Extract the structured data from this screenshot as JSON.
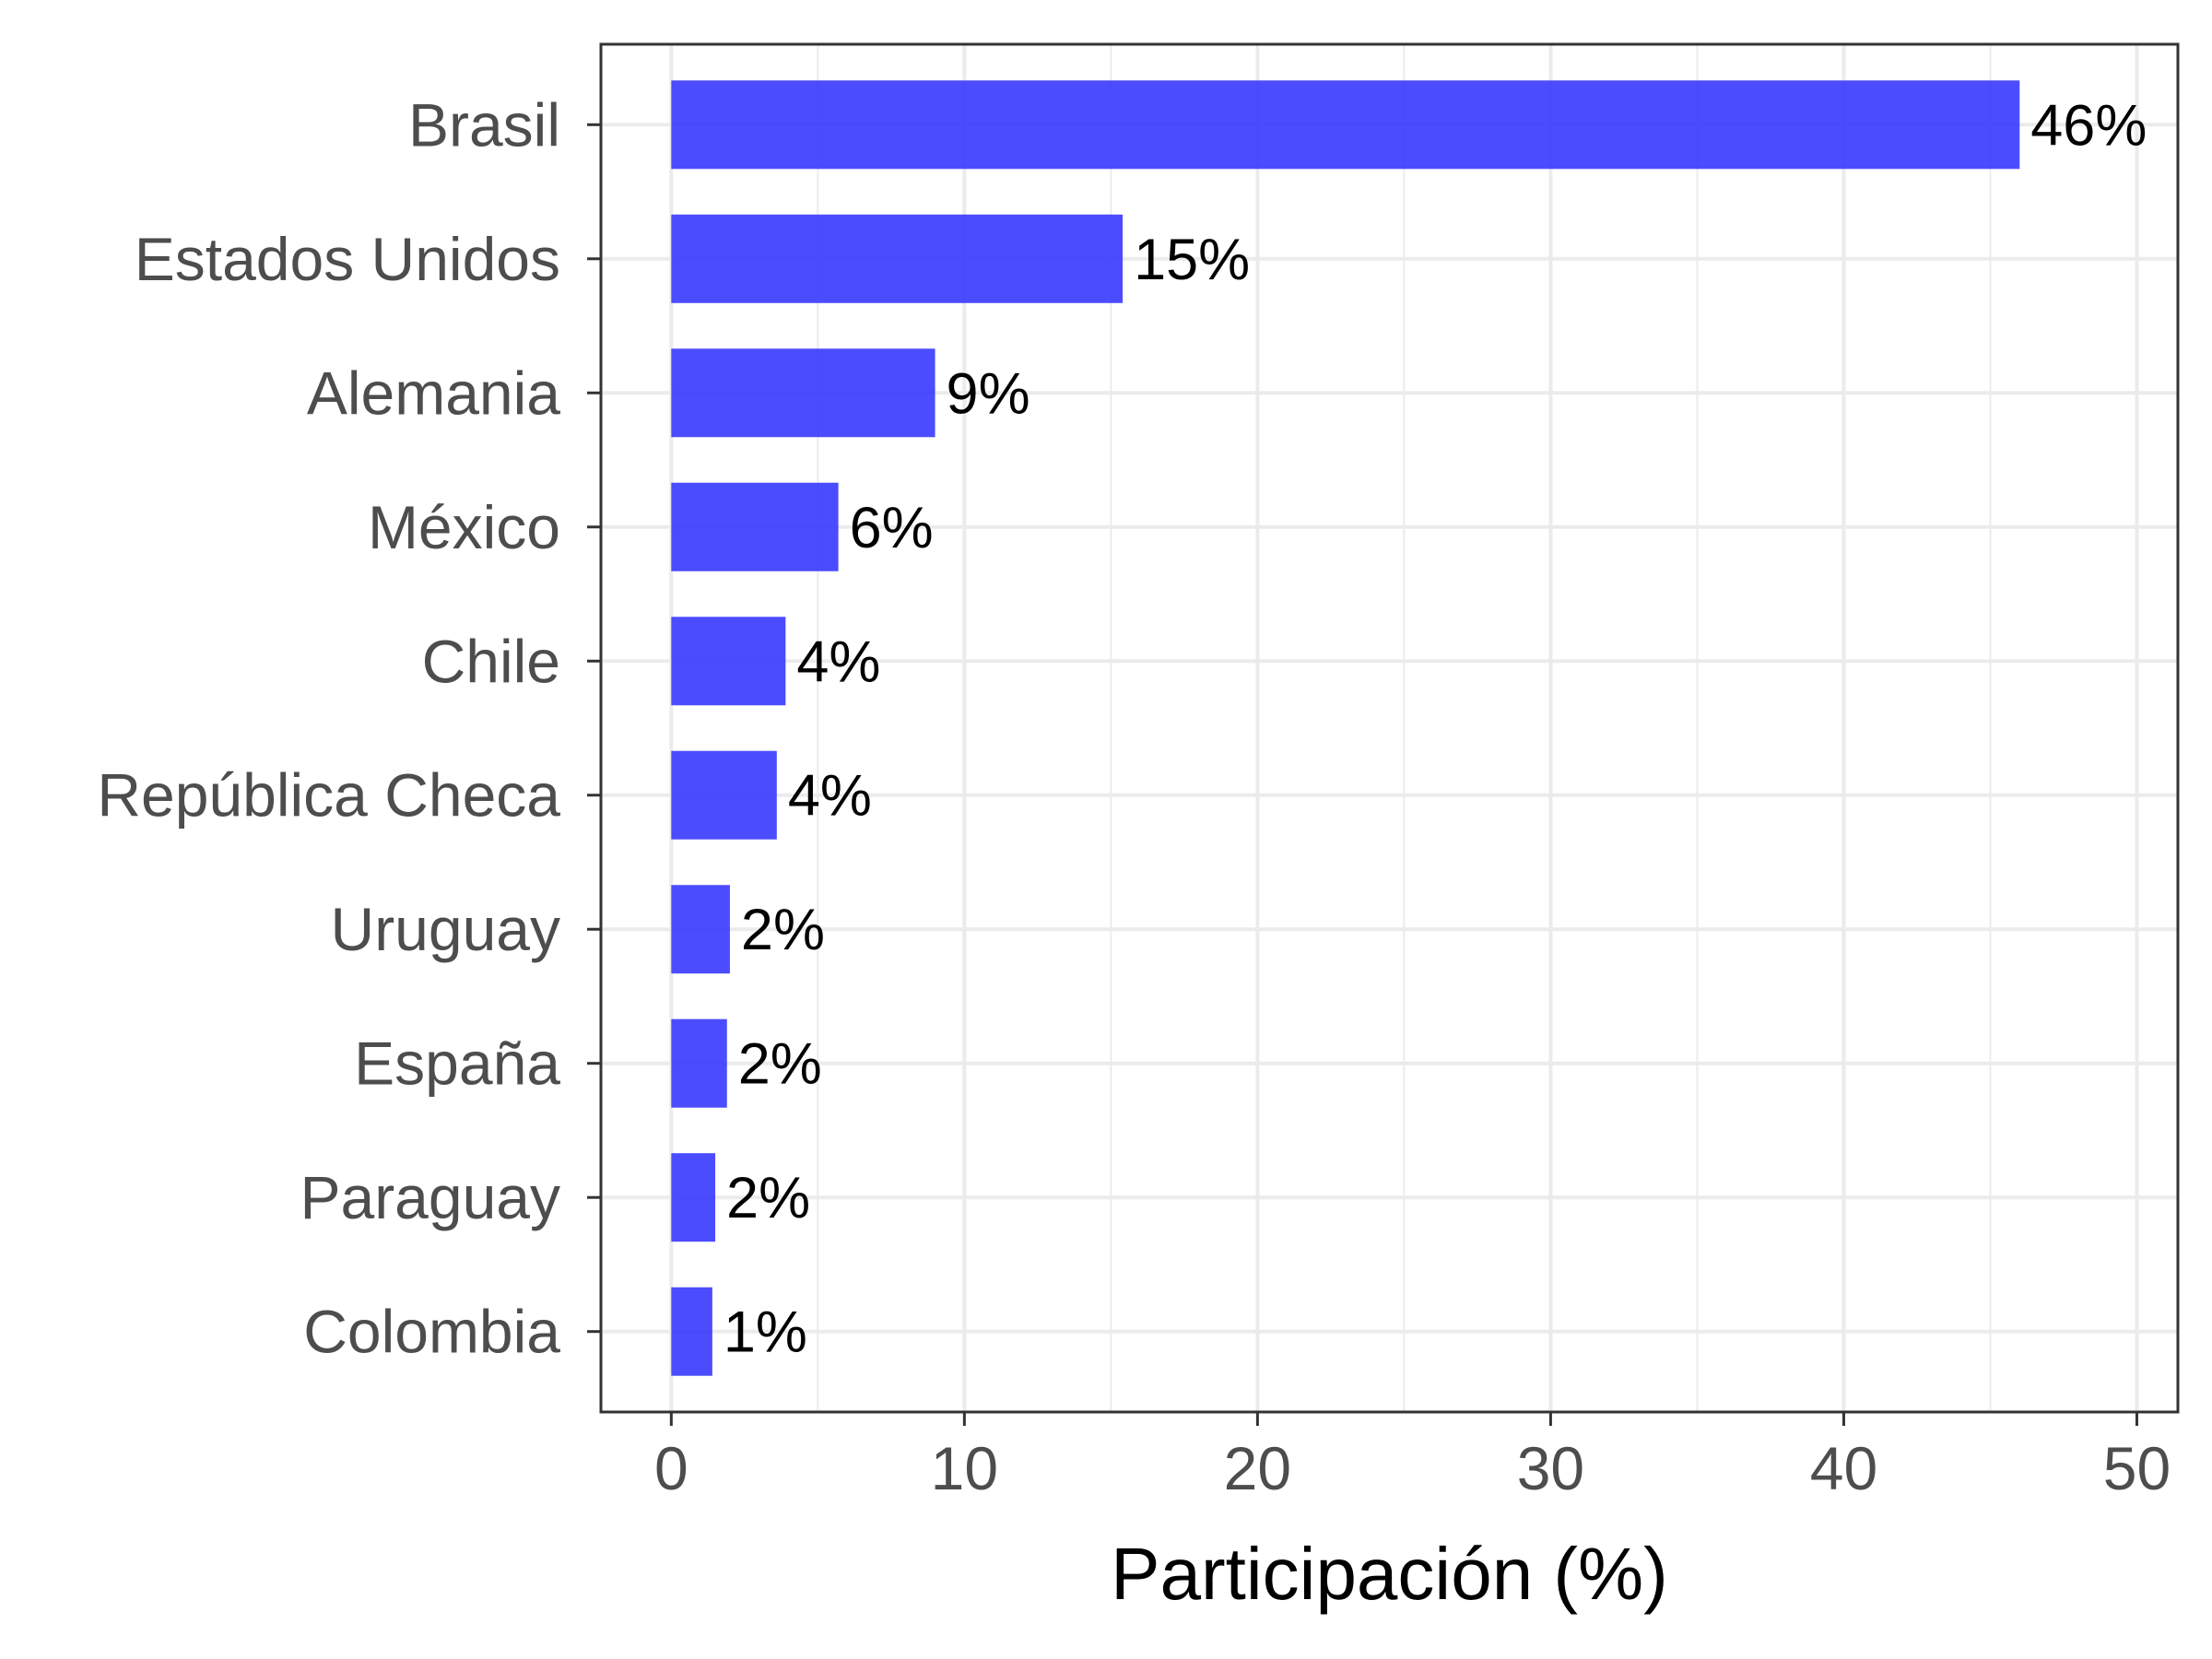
{
  "chart_data": {
    "type": "bar",
    "orientation": "horizontal",
    "categories": [
      "Brasil",
      "Estados Unidos",
      "Alemania",
      "México",
      "Chile",
      "República Checa",
      "Uruguay",
      "España",
      "Paraguay",
      "Colombia"
    ],
    "values": [
      46,
      15.4,
      9,
      5.7,
      3.9,
      3.6,
      2,
      1.9,
      1.5,
      1.4
    ],
    "data_labels": [
      "46%",
      "15%",
      "9%",
      "6%",
      "4%",
      "4%",
      "2%",
      "2%",
      "2%",
      "1%"
    ],
    "xlabel": "Participación (%)",
    "ylabel": "",
    "xlim": [
      -2.4,
      51.4
    ],
    "x_ticks": [
      0,
      10,
      20,
      30,
      40,
      50
    ],
    "x_tick_labels": [
      "0",
      "10",
      "20",
      "30",
      "40",
      "50"
    ],
    "grid": true,
    "bar_color": "#3333ff",
    "bar_opacity": 0.88
  }
}
